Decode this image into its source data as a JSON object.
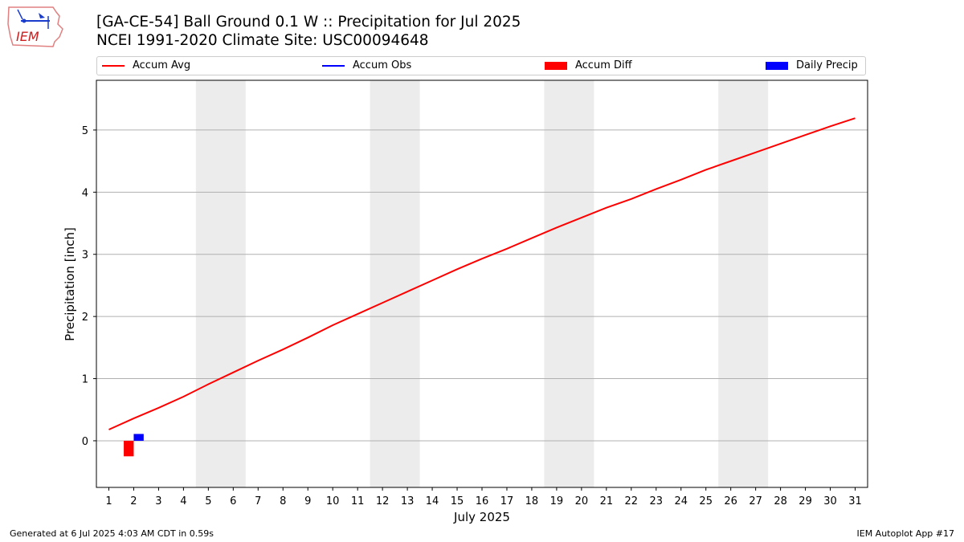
{
  "header": {
    "title_line1": "[GA-CE-54] Ball Ground 0.1 W :: Precipitation for Jul 2025",
    "title_line2": "NCEI 1991-2020 Climate Site: USC00094648",
    "logo_text": "IEM"
  },
  "legend": {
    "items": [
      {
        "label": "Accum Avg",
        "kind": "line",
        "color": "#ff0000"
      },
      {
        "label": "Accum Obs",
        "kind": "line",
        "color": "#0000ff"
      },
      {
        "label": "Accum Diff",
        "kind": "box",
        "color": "#ff0000"
      },
      {
        "label": "Daily Precip",
        "kind": "box",
        "color": "#0000ff"
      }
    ]
  },
  "footer": {
    "left": "Generated at 6 Jul 2025 4:03 AM CDT in 0.59s",
    "right": "IEM Autoplot App #17"
  },
  "chart_data": {
    "type": "line",
    "xlabel": "July 2025",
    "ylabel": "Precipitation [inch]",
    "x": [
      1,
      2,
      3,
      4,
      5,
      6,
      7,
      8,
      9,
      10,
      11,
      12,
      13,
      14,
      15,
      16,
      17,
      18,
      19,
      20,
      21,
      22,
      23,
      24,
      25,
      26,
      27,
      28,
      29,
      30,
      31
    ],
    "xlim": [
      0.5,
      31.5
    ],
    "ylim": [
      -0.75,
      5.8
    ],
    "yticks": [
      0,
      1,
      2,
      3,
      4,
      5
    ],
    "weekend_shading": [
      [
        4.5,
        6.5
      ],
      [
        11.5,
        13.5
      ],
      [
        18.5,
        20.5
      ],
      [
        25.5,
        27.5
      ]
    ],
    "grid": "horizontal",
    "series": [
      {
        "name": "Accum Avg",
        "kind": "line",
        "color": "#ff0000",
        "values": [
          0.18,
          0.36,
          0.53,
          0.71,
          0.91,
          1.1,
          1.29,
          1.47,
          1.66,
          1.86,
          2.04,
          2.22,
          2.4,
          2.58,
          2.76,
          2.93,
          3.09,
          3.26,
          3.43,
          3.59,
          3.75,
          3.89,
          4.05,
          4.2,
          4.36,
          4.5,
          4.64,
          4.78,
          4.92,
          5.06,
          5.19
        ]
      },
      {
        "name": "Accum Diff",
        "kind": "bar",
        "color": "#ff0000",
        "points": [
          {
            "x": 2,
            "value": -0.25
          }
        ]
      },
      {
        "name": "Daily Precip",
        "kind": "bar",
        "color": "#0000ff",
        "points": [
          {
            "x": 2,
            "value": 0.11
          }
        ]
      }
    ]
  }
}
